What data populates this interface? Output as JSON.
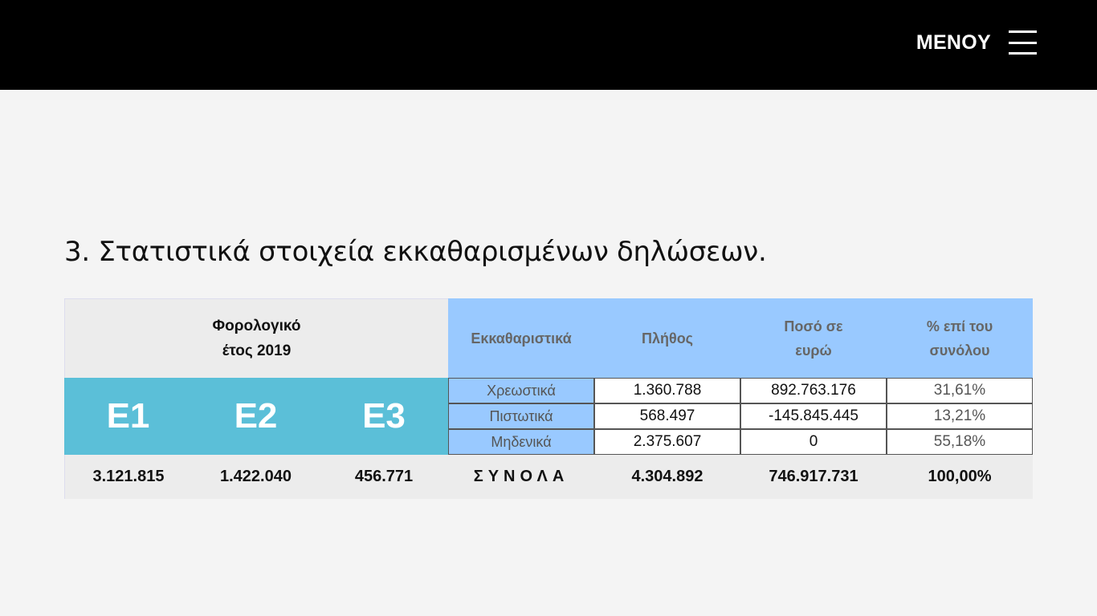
{
  "header": {
    "menu_label": "MENOY",
    "menu_icon": "hamburger-icon"
  },
  "section_title": "3. Στατιστικά στοιχεία εκκαθαρισμένων δηλώσεων.",
  "table": {
    "year_header_line1": "Φορολογικό",
    "year_header_line2": "έτος 2019",
    "forms": [
      "E1",
      "E2",
      "E3"
    ],
    "form_totals": [
      "3.121.815",
      "1.422.040",
      "456.771"
    ],
    "columns": {
      "type": "Εκκαθαριστικά",
      "count": "Πλήθος",
      "amount_line1": "Ποσό σε",
      "amount_line2": "ευρώ",
      "pct_line1": "% επί του",
      "pct_line2": "συνόλου"
    },
    "rows": [
      {
        "type": "Χρεωστικά",
        "count": "1.360.788",
        "amount": "892.763.176",
        "pct": "31,61%"
      },
      {
        "type": "Πιστωτικά",
        "count": "568.497",
        "amount": "-145.845.445",
        "pct": "13,21%"
      },
      {
        "type": "Μηδενικά",
        "count": "2.375.607",
        "amount": "0",
        "pct": "55,18%"
      }
    ],
    "totals": {
      "label": "ΣΥΝΟΛΑ",
      "count": "4.304.892",
      "amount": "746.917.731",
      "pct": "100,00%"
    }
  },
  "colors": {
    "header_bg": "#000000",
    "form_bg": "#5bbfd8",
    "blue_header": "#99c9ff",
    "page_bg": "#f4f4f4"
  }
}
